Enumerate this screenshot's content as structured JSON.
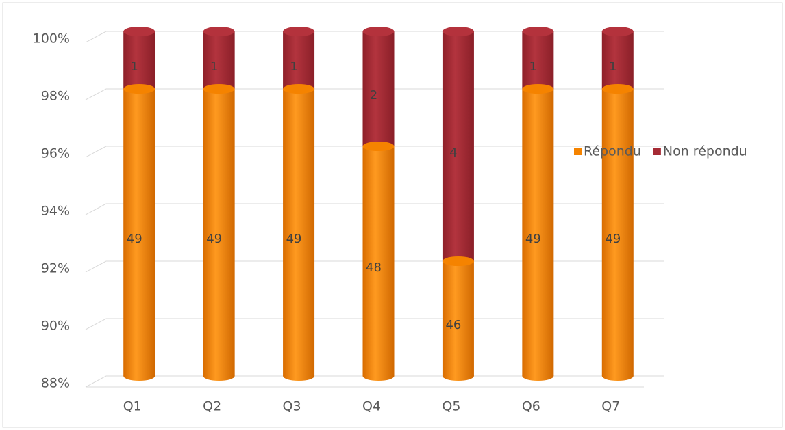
{
  "chart_data": {
    "type": "bar",
    "stacking": "percent",
    "categories": [
      "Q1",
      "Q2",
      "Q3",
      "Q4",
      "Q5",
      "Q6",
      "Q7"
    ],
    "series": [
      {
        "name": "Répondu",
        "color": "#f58300",
        "values": [
          49,
          49,
          49,
          48,
          46,
          49,
          49
        ]
      },
      {
        "name": "Non répondu",
        "color": "#a52a34",
        "values": [
          1,
          1,
          1,
          2,
          4,
          1,
          1
        ]
      }
    ],
    "ylim": [
      88,
      100
    ],
    "yticks": [
      {
        "value": 88,
        "label": "88%"
      },
      {
        "value": 90,
        "label": "90%"
      },
      {
        "value": 92,
        "label": "92%"
      },
      {
        "value": 94,
        "label": "94%"
      },
      {
        "value": 96,
        "label": "96%"
      },
      {
        "value": 98,
        "label": "98%"
      },
      {
        "value": 100,
        "label": "100%"
      }
    ],
    "grid": true,
    "legend": "right"
  }
}
